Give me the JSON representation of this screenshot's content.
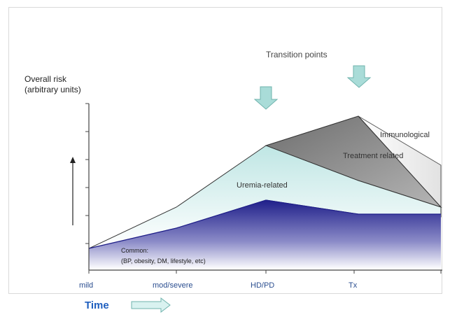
{
  "annotations": {
    "transition_points": "Transition points",
    "y_axis_line1": "Overall risk",
    "y_axis_line2": "(arbitrary units)",
    "immunological": "Immunological",
    "treatment_related": "Treatment related",
    "uremia_related": "Uremia-related",
    "common_line1": "Common:",
    "common_line2": "(BP, obesity, DM, lifestyle, etc)"
  },
  "x_axis": {
    "ticks": [
      "mild",
      "mod/severe",
      "HD/PD",
      "Tx"
    ],
    "title": "Time"
  },
  "colors": {
    "common_dark": "#1f1f8a",
    "uremia_light": "#d8f0f0",
    "treatment_gray": "#8a8a8a",
    "immuno_gray": "#d0d0d0",
    "arrow_fill": "#a9dcd8",
    "arrow_stroke": "#6fb3ad",
    "tick_text": "#2a4d8f",
    "time_text": "#1f5fbf"
  },
  "icons": {
    "transition_arrow_1": "down-arrow-icon",
    "transition_arrow_2": "down-arrow-icon",
    "time_arrow": "right-arrow-icon",
    "risk_arrow": "up-arrow-icon"
  }
}
